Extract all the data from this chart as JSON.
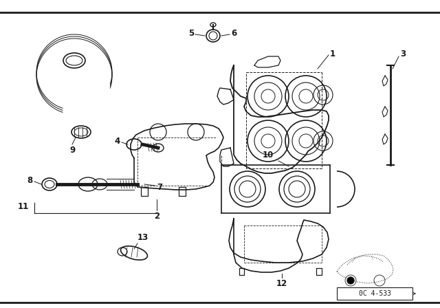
{
  "bg_color": "#ffffff",
  "line_color": "#1a1a1a",
  "border_color": "#000000",
  "diagram_code_text": "0C 4-533",
  "label_fontsize": 8.5,
  "label_fontweight": "bold",
  "fig_width": 6.4,
  "fig_height": 4.48,
  "dpi": 100
}
